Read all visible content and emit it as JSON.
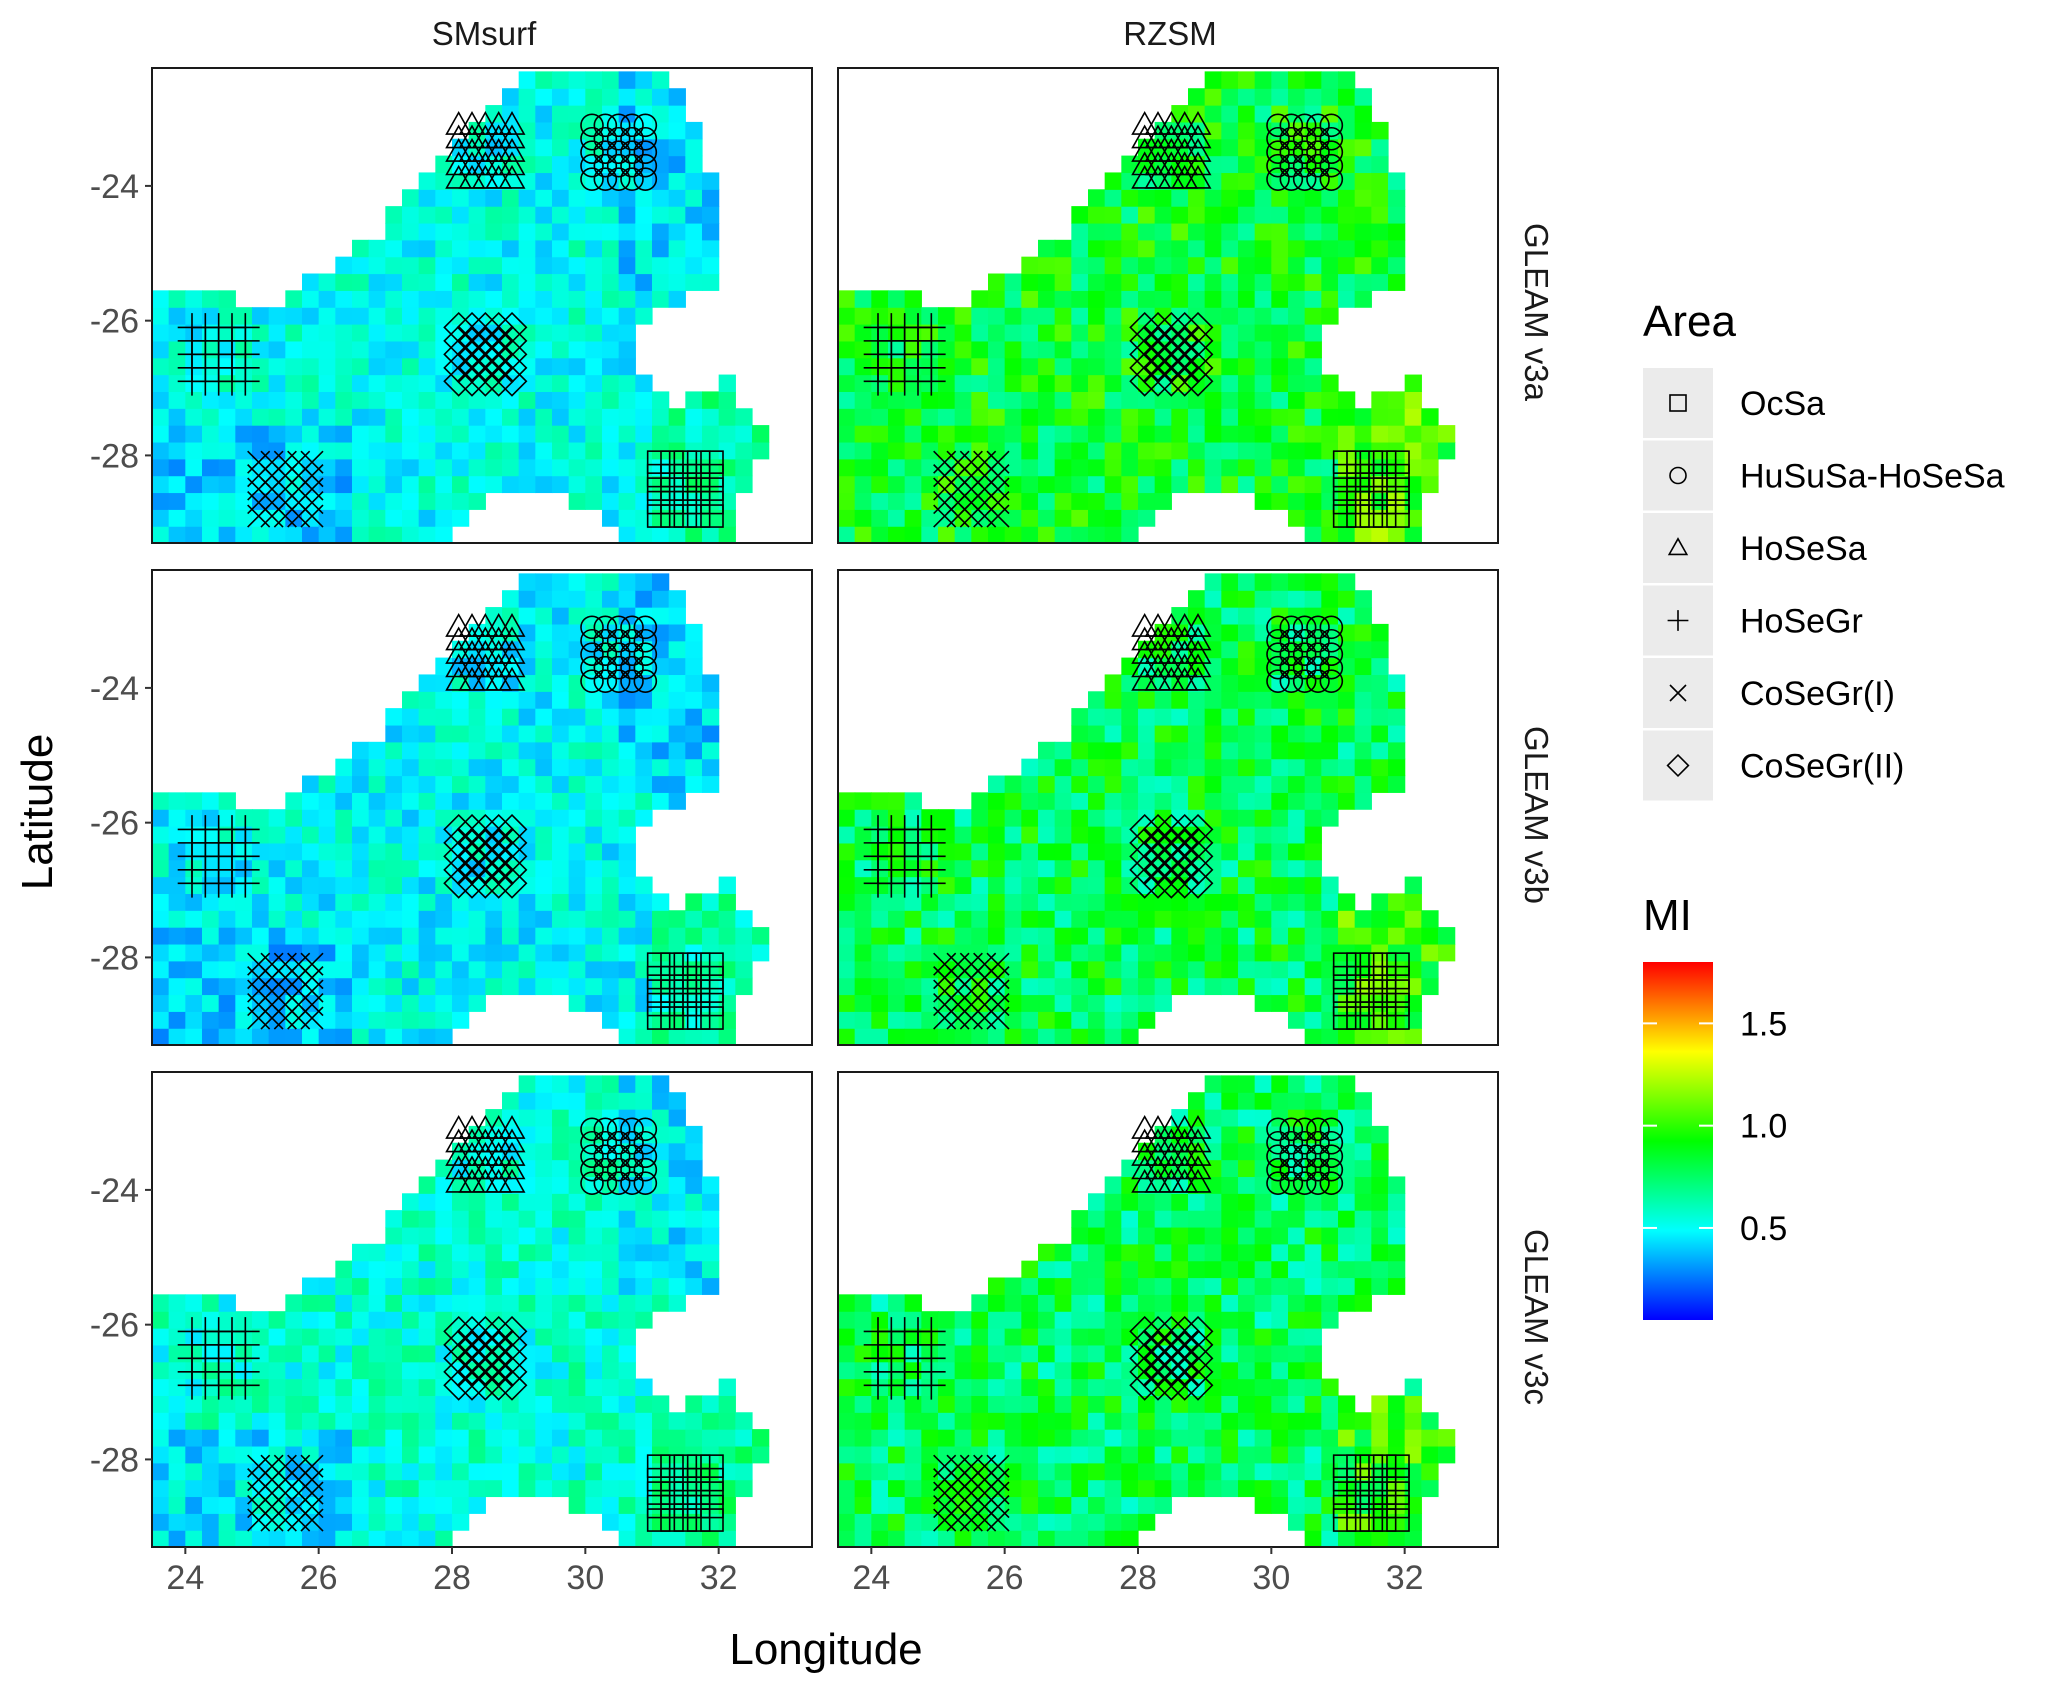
{
  "chart_data": {
    "type": "heatmap",
    "description_free": true,
    "xlabel": "Longitude",
    "ylabel": "Latitude",
    "xlim": [
      23.5,
      33.4
    ],
    "ylim": [
      -29.3,
      -22.25
    ],
    "xticks": [
      "24",
      "26",
      "28",
      "30",
      "32"
    ],
    "yticks": [
      "-24",
      "-26",
      "-28"
    ],
    "columns": [
      "SMsurf",
      "RZSM"
    ],
    "rows": [
      "GLEAM v3a",
      "GLEAM v3b",
      "GLEAM v3c"
    ],
    "colorbar": {
      "title": "MI",
      "range": [
        0.05,
        1.8
      ],
      "ticks": [
        "0.5",
        "1.0",
        "1.5"
      ],
      "tick_values": [
        0.5,
        1.0,
        1.5
      ],
      "colors": [
        "#0000ff",
        "#00ffff",
        "#00ff00",
        "#ffff00",
        "#ff0000"
      ]
    },
    "shape_legend": {
      "title": "Area",
      "items": [
        {
          "label": "OcSa",
          "symbol": "square",
          "lon": [
            31.0,
            32.0
          ],
          "lat": [
            -29.0,
            -28.0
          ]
        },
        {
          "label": "HuSuSa-HoSeSa",
          "symbol": "circle",
          "lon": [
            30.0,
            31.0
          ],
          "lat": [
            -24.0,
            -23.0
          ]
        },
        {
          "label": "HoSeSa",
          "symbol": "triangle",
          "lon": [
            28.0,
            29.0
          ],
          "lat": [
            -24.0,
            -23.0
          ]
        },
        {
          "label": "HoSeGr",
          "symbol": "plus",
          "lon": [
            24.0,
            25.0
          ],
          "lat": [
            -27.0,
            -26.0
          ]
        },
        {
          "label": "CoSeGr(I)",
          "symbol": "cross",
          "lon": [
            25.0,
            26.0
          ],
          "lat": [
            -29.0,
            -28.0
          ]
        },
        {
          "label": "CoSeGr(II)",
          "symbol": "diamond",
          "lon": [
            28.0,
            29.0
          ],
          "lat": [
            -27.0,
            -26.0
          ]
        }
      ]
    },
    "panel_mean_mi": {
      "SMsurf|GLEAM v3a": 0.52,
      "SMsurf|GLEAM v3b": 0.5,
      "SMsurf|GLEAM v3c": 0.56,
      "RZSM|GLEAM v3a": 0.86,
      "RZSM|GLEAM v3b": 0.8,
      "RZSM|GLEAM v3c": 0.78
    }
  }
}
